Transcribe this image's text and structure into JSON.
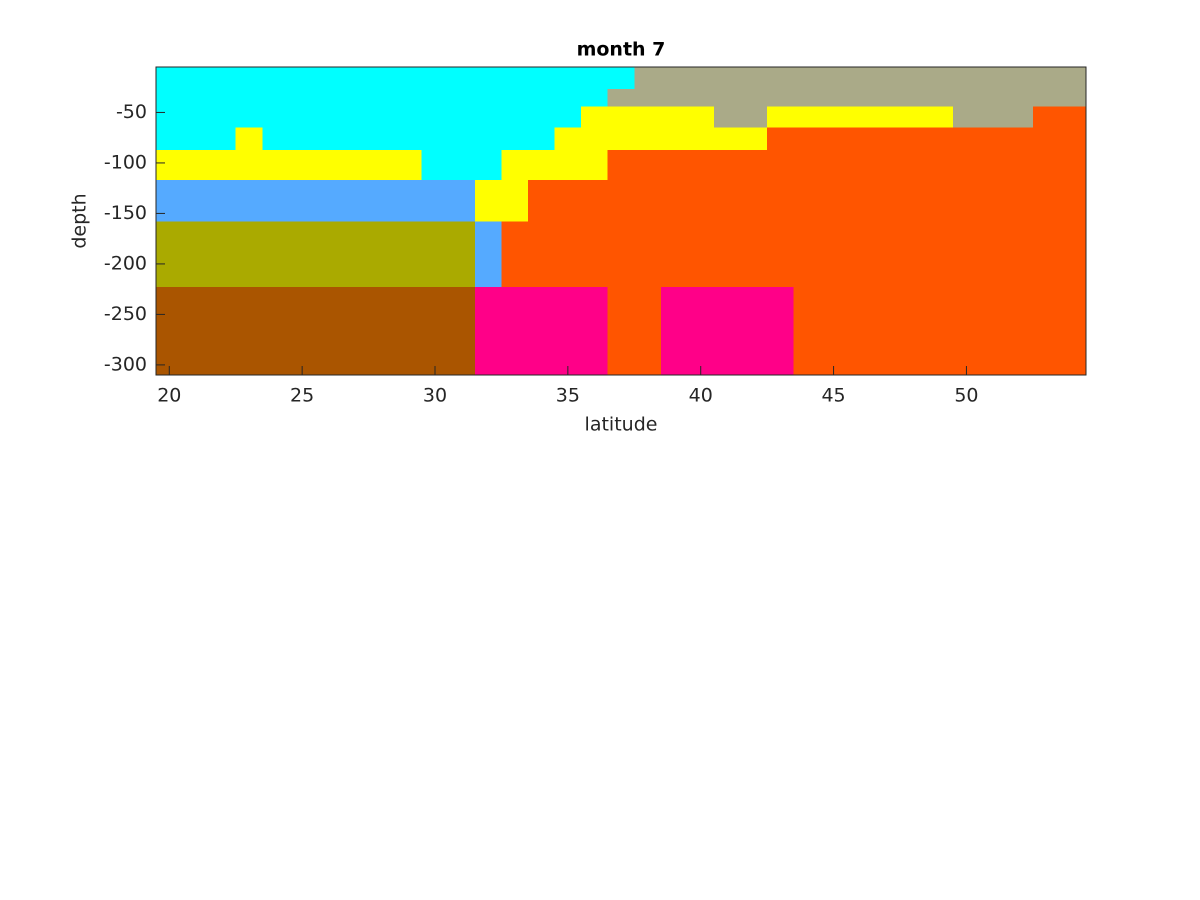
{
  "chart_data": {
    "type": "heatmap",
    "title": "month 7",
    "x_label": "latitude",
    "y_label": "depth",
    "x_edges": [
      19.5,
      20.5,
      21.5,
      22.5,
      23.5,
      24.5,
      25.5,
      26.5,
      27.5,
      28.5,
      29.5,
      30.5,
      31.5,
      32.5,
      33.5,
      34.5,
      35.5,
      36.5,
      37.5,
      38.5,
      39.5,
      40.5,
      41.5,
      42.5,
      43.5,
      44.5,
      45.5,
      46.5,
      47.5,
      48.5,
      49.5,
      50.5,
      51.5,
      52.5,
      53.5,
      54.5
    ],
    "y_edges": [
      -5,
      -27,
      -44,
      -65,
      -87,
      -117,
      -158,
      -223,
      -310
    ],
    "xlim": [
      19.5,
      54.5
    ],
    "ylim": [
      -310,
      -5
    ],
    "xticks": [
      20,
      25,
      30,
      35,
      40,
      45,
      50
    ],
    "yticks": [
      -300,
      -250,
      -200,
      -150,
      -100,
      -50
    ],
    "values": [
      [
        "#0ff",
        "#0ff",
        "#0ff",
        "#0ff",
        "#0ff",
        "#0ff",
        "#0ff",
        "#0ff",
        "#0ff",
        "#0ff",
        "#0ff",
        "#0ff",
        "#0ff",
        "#0ff",
        "#0ff",
        "#0ff",
        "#0ff",
        "#0ff",
        "#aa8",
        "#aa8",
        "#aa8",
        "#aa8",
        "#aa8",
        "#aa8",
        "#aa8",
        "#aa8",
        "#aa8",
        "#aa8",
        "#aa8",
        "#aa8",
        "#aa8",
        "#aa8",
        "#aa8",
        "#aa8",
        "#aa8"
      ],
      [
        "#0ff",
        "#0ff",
        "#0ff",
        "#0ff",
        "#0ff",
        "#0ff",
        "#0ff",
        "#0ff",
        "#0ff",
        "#0ff",
        "#0ff",
        "#0ff",
        "#0ff",
        "#0ff",
        "#0ff",
        "#0ff",
        "#0ff",
        "#aa8",
        "#aa8",
        "#aa8",
        "#aa8",
        "#aa8",
        "#aa8",
        "#aa8",
        "#aa8",
        "#aa8",
        "#aa8",
        "#aa8",
        "#aa8",
        "#aa8",
        "#aa8",
        "#aa8",
        "#aa8",
        "#aa8",
        "#aa8"
      ],
      [
        "#0ff",
        "#0ff",
        "#0ff",
        "#0ff",
        "#0ff",
        "#0ff",
        "#0ff",
        "#0ff",
        "#0ff",
        "#0ff",
        "#0ff",
        "#0ff",
        "#0ff",
        "#0ff",
        "#0ff",
        "#0ff",
        "#ff0",
        "#ff0",
        "#ff0",
        "#ff0",
        "#ff0",
        "#aa8",
        "#aa8",
        "#ff0",
        "#ff0",
        "#ff0",
        "#ff0",
        "#ff0",
        "#ff0",
        "#ff0",
        "#aa8",
        "#aa8",
        "#aa8",
        "#f50",
        "#f50"
      ],
      [
        "#0ff",
        "#0ff",
        "#0ff",
        "#ff0",
        "#0ff",
        "#0ff",
        "#0ff",
        "#0ff",
        "#0ff",
        "#0ff",
        "#0ff",
        "#0ff",
        "#0ff",
        "#0ff",
        "#0ff",
        "#ff0",
        "#ff0",
        "#ff0",
        "#ff0",
        "#ff0",
        "#ff0",
        "#ff0",
        "#ff0",
        "#f50",
        "#f50",
        "#f50",
        "#f50",
        "#f50",
        "#f50",
        "#f50",
        "#f50",
        "#f50",
        "#f50",
        "#f50",
        "#f50"
      ],
      [
        "#ff0",
        "#ff0",
        "#ff0",
        "#ff0",
        "#ff0",
        "#ff0",
        "#ff0",
        "#ff0",
        "#ff0",
        "#ff0",
        "#0ff",
        "#0ff",
        "#0ff",
        "#ff0",
        "#ff0",
        "#ff0",
        "#ff0",
        "#f50",
        "#f50",
        "#f50",
        "#f50",
        "#f50",
        "#f50",
        "#f50",
        "#f50",
        "#f50",
        "#f50",
        "#f50",
        "#f50",
        "#f50",
        "#f50",
        "#f50",
        "#f50",
        "#f50",
        "#f50"
      ],
      [
        "#5af",
        "#5af",
        "#5af",
        "#5af",
        "#5af",
        "#5af",
        "#5af",
        "#5af",
        "#5af",
        "#5af",
        "#5af",
        "#5af",
        "#ff0",
        "#ff0",
        "#f50",
        "#f50",
        "#f50",
        "#f50",
        "#f50",
        "#f50",
        "#f50",
        "#f50",
        "#f50",
        "#f50",
        "#f50",
        "#f50",
        "#f50",
        "#f50",
        "#f50",
        "#f50",
        "#f50",
        "#f50",
        "#f50",
        "#f50",
        "#f50"
      ],
      [
        "#aa0",
        "#aa0",
        "#aa0",
        "#aa0",
        "#aa0",
        "#aa0",
        "#aa0",
        "#aa0",
        "#aa0",
        "#aa0",
        "#aa0",
        "#aa0",
        "#5af",
        "#f50",
        "#f50",
        "#f50",
        "#f50",
        "#f50",
        "#f50",
        "#f50",
        "#f50",
        "#f50",
        "#f50",
        "#f50",
        "#f50",
        "#f50",
        "#f50",
        "#f50",
        "#f50",
        "#f50",
        "#f50",
        "#f50",
        "#f50",
        "#f50",
        "#f50"
      ],
      [
        "#a50",
        "#a50",
        "#a50",
        "#a50",
        "#a50",
        "#a50",
        "#a50",
        "#a50",
        "#a50",
        "#a50",
        "#a50",
        "#a50",
        "#f08",
        "#f08",
        "#f08",
        "#f08",
        "#f08",
        "#f50",
        "#f50",
        "#f08",
        "#f08",
        "#f08",
        "#f08",
        "#f08",
        "#f50",
        "#f50",
        "#f50",
        "#f50",
        "#f50",
        "#f50",
        "#f50",
        "#f50",
        "#f50",
        "#f50",
        "#f50"
      ]
    ]
  }
}
